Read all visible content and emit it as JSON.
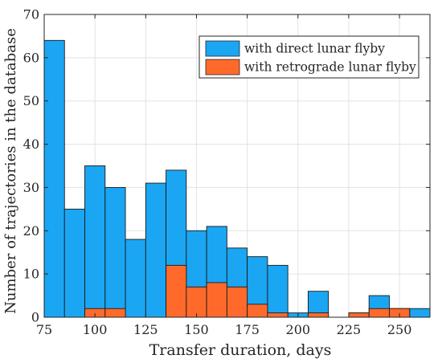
{
  "chart_data": {
    "type": "bar",
    "xlabel": "Transfer duration, days",
    "ylabel": "Number of trajectories in the database",
    "xlim": [
      75,
      265
    ],
    "ylim": [
      0,
      70
    ],
    "xticks": [
      75,
      100,
      125,
      150,
      175,
      200,
      225,
      250
    ],
    "yticks": [
      0,
      10,
      20,
      30,
      40,
      50,
      60,
      70
    ],
    "grid": true,
    "legend": "top-right",
    "bin_width": 10,
    "bins": [
      75,
      85,
      95,
      105,
      115,
      125,
      135,
      145,
      155,
      165,
      175,
      185,
      195,
      205,
      215,
      225,
      235,
      245,
      255
    ],
    "series": [
      {
        "name": "with direct lunar flyby",
        "color": "#1aa6f2",
        "values": [
          64,
          25,
          35,
          30,
          18,
          31,
          34,
          20,
          21,
          16,
          14,
          12,
          1,
          6,
          0,
          1,
          5,
          2,
          2
        ]
      },
      {
        "name": "with retrograde lunar flyby",
        "color": "#ff6a2b",
        "values": [
          0,
          0,
          2,
          2,
          0,
          0,
          12,
          7,
          8,
          7,
          3,
          1,
          0,
          1,
          0,
          1,
          2,
          2,
          0
        ]
      }
    ]
  }
}
